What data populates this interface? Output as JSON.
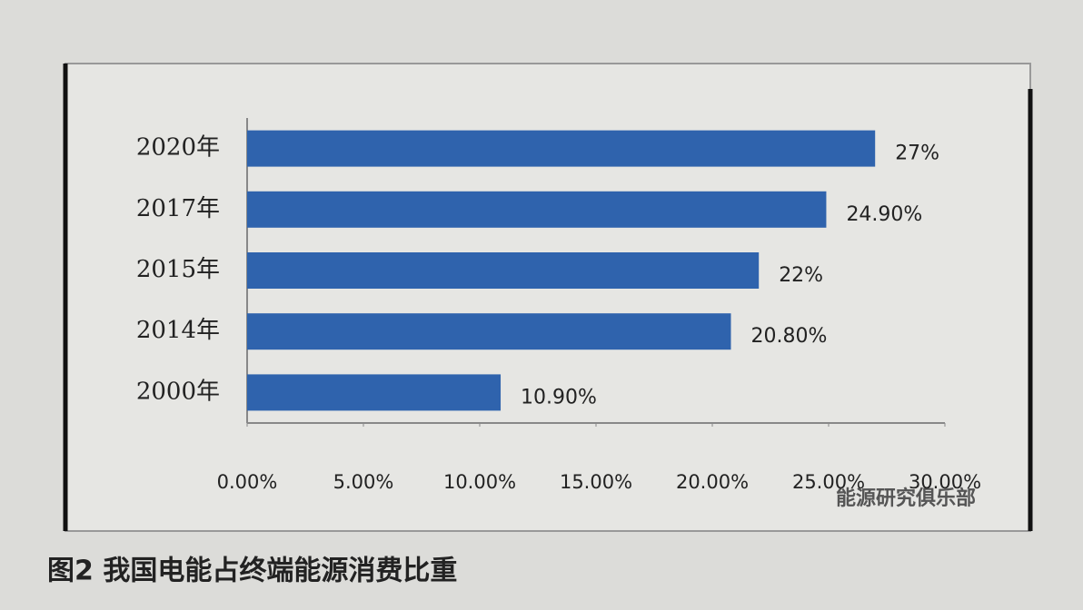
{
  "chart_data": {
    "type": "hbar",
    "title": "图2 我国电能占终端能源消费比重",
    "watermark": "能源研究俱乐部",
    "categories": [
      "2020年",
      "2017年",
      "2015年",
      "2014年",
      "2000年"
    ],
    "values": [
      27,
      24.9,
      22,
      20.8,
      10.9
    ],
    "value_labels": [
      "27%",
      "24.90%",
      "22%",
      "20.80%",
      "10.90%"
    ],
    "color": "#2f63ad",
    "xlim": [
      0,
      30
    ],
    "xticks": [
      {
        "value": 0,
        "label": "0.00%"
      },
      {
        "value": 5,
        "label": "5.00%"
      },
      {
        "value": 10,
        "label": "10.00%"
      },
      {
        "value": 15,
        "label": "15.00%"
      },
      {
        "value": 20,
        "label": "20.00%"
      },
      {
        "value": 25,
        "label": "25.00%"
      },
      {
        "value": 30,
        "label": "30.00%"
      }
    ],
    "grid": false
  }
}
